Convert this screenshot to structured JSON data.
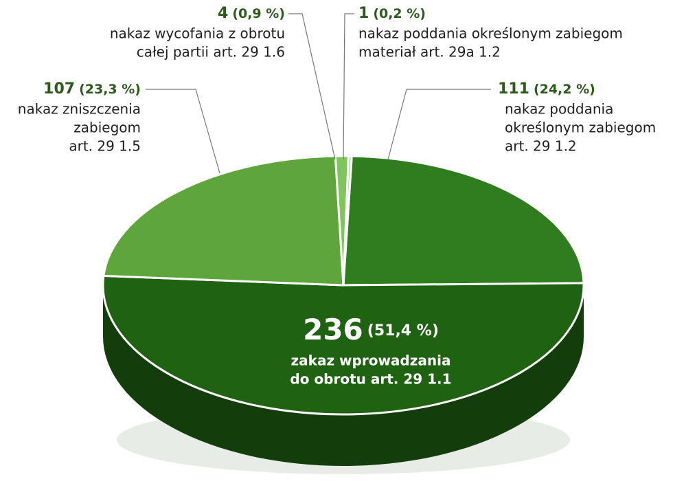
{
  "chart_data": {
    "type": "pie3d",
    "categories": [
      [
        "nakaz poddania",
        "określonym zabiegom",
        "art. 29 1.2"
      ],
      [
        "zakaz wprowadzania",
        "do obrotu art. 29 1.1"
      ],
      [
        "nakaz zniszczenia",
        "zabiegom",
        "art. 29 1.5"
      ],
      [
        "nakaz wycofania z obrotu",
        "całej partii art. 29 1.6"
      ],
      [
        "nakaz poddania określonym zabiegom",
        "materiał art. 29a 1.2"
      ]
    ],
    "values": [
      111,
      236,
      107,
      4,
      1
    ],
    "percentages": [
      24.2,
      51.4,
      23.3,
      0.9,
      0.2
    ],
    "percentage_labels": [
      "(24,2 %)",
      "(51,4 %)",
      "(23,3 %)",
      "(0,9 %)",
      "(0,2 %)"
    ],
    "colors": [
      "#2f7d1f",
      "#1f6212",
      "#5ea53c",
      "#7fc45c",
      "#a9da8d"
    ]
  }
}
